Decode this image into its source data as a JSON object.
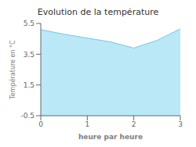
{
  "chart_data": {
    "type": "area",
    "title": "Evolution de la température",
    "x_label": "heure par heure",
    "y_label": "Température en °C",
    "x": [
      0,
      0.5,
      1,
      1.5,
      2,
      2.5,
      3
    ],
    "series": [
      {
        "name": "Température en °C",
        "color": "#66ccee",
        "values": [
          5.1,
          4.8,
          4.55,
          4.3,
          3.9,
          4.4,
          5.15
        ]
      }
    ],
    "xlim": [
      0,
      3
    ],
    "ylim": [
      -0.5,
      5.5
    ],
    "xticks": [
      0,
      1,
      2,
      3
    ],
    "yticks": [
      -0.5,
      1.5,
      3.5,
      5.5
    ],
    "grid": false
  }
}
